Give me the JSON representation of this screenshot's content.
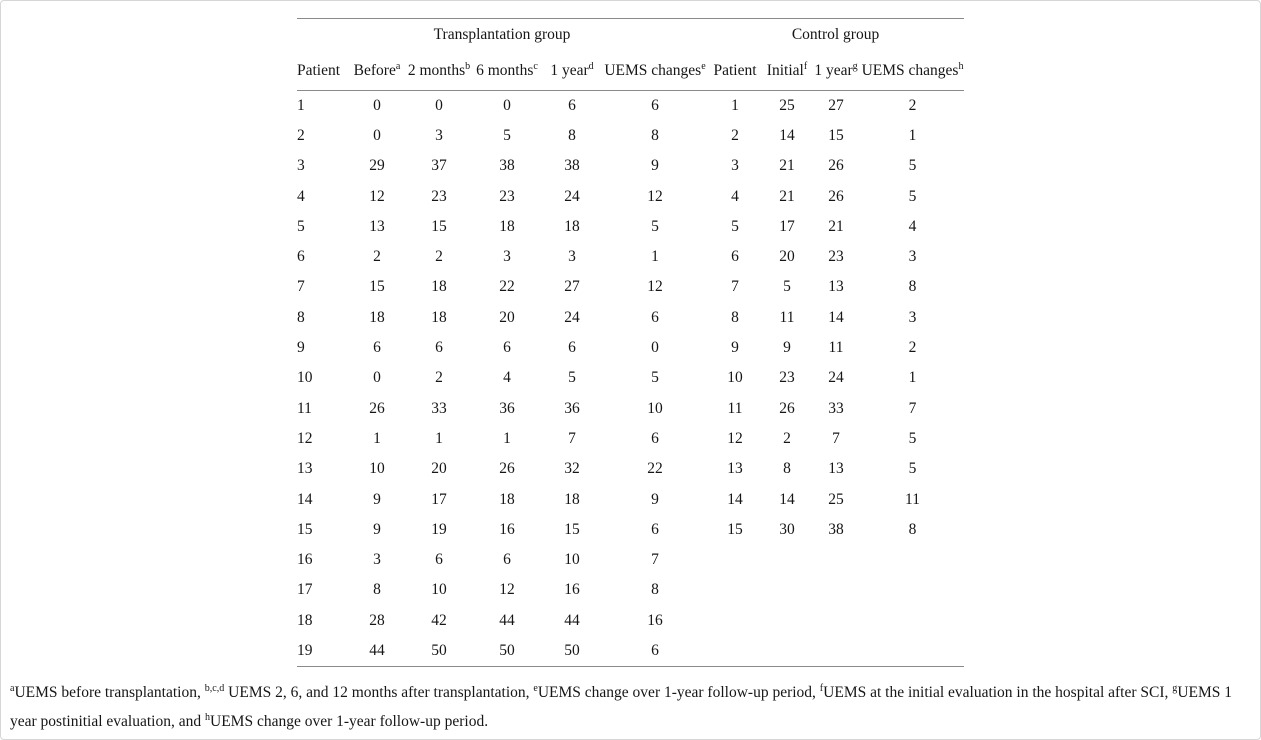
{
  "page": {
    "background_color": "#ffffff",
    "border_color": "#d6d6d6",
    "rule_color": "#8a8a8a",
    "text_color": "#161616"
  },
  "table": {
    "group_headers": [
      {
        "label": "Transplantation group",
        "colspan": 6
      },
      {
        "label": "Control group",
        "colspan": 4
      }
    ],
    "columns": [
      {
        "label": "Patient",
        "sup": ""
      },
      {
        "label": "Before",
        "sup": "a"
      },
      {
        "label": "2 months",
        "sup": "b"
      },
      {
        "label": "6 months",
        "sup": "c"
      },
      {
        "label": "1 year",
        "sup": "d"
      },
      {
        "label": "UEMS changes",
        "sup": "e"
      },
      {
        "label": "Patient",
        "sup": ""
      },
      {
        "label": "Initial",
        "sup": "f"
      },
      {
        "label": "1 year",
        "sup": "g"
      },
      {
        "label": "UEMS changes",
        "sup": "h"
      }
    ],
    "rows": [
      [
        "1",
        "0",
        "0",
        "0",
        "6",
        "6",
        "1",
        "25",
        "27",
        "2"
      ],
      [
        "2",
        "0",
        "3",
        "5",
        "8",
        "8",
        "2",
        "14",
        "15",
        "1"
      ],
      [
        "3",
        "29",
        "37",
        "38",
        "38",
        "9",
        "3",
        "21",
        "26",
        "5"
      ],
      [
        "4",
        "12",
        "23",
        "23",
        "24",
        "12",
        "4",
        "21",
        "26",
        "5"
      ],
      [
        "5",
        "13",
        "15",
        "18",
        "18",
        "5",
        "5",
        "17",
        "21",
        "4"
      ],
      [
        "6",
        "2",
        "2",
        "3",
        "3",
        "1",
        "6",
        "20",
        "23",
        "3"
      ],
      [
        "7",
        "15",
        "18",
        "22",
        "27",
        "12",
        "7",
        "5",
        "13",
        "8"
      ],
      [
        "8",
        "18",
        "18",
        "20",
        "24",
        "6",
        "8",
        "11",
        "14",
        "3"
      ],
      [
        "9",
        "6",
        "6",
        "6",
        "6",
        "0",
        "9",
        "9",
        "11",
        "2"
      ],
      [
        "10",
        "0",
        "2",
        "4",
        "5",
        "5",
        "10",
        "23",
        "24",
        "1"
      ],
      [
        "11",
        "26",
        "33",
        "36",
        "36",
        "10",
        "11",
        "26",
        "33",
        "7"
      ],
      [
        "12",
        "1",
        "1",
        "1",
        "7",
        "6",
        "12",
        "2",
        "7",
        "5"
      ],
      [
        "13",
        "10",
        "20",
        "26",
        "32",
        "22",
        "13",
        "8",
        "13",
        "5"
      ],
      [
        "14",
        "9",
        "17",
        "18",
        "18",
        "9",
        "14",
        "14",
        "25",
        "11"
      ],
      [
        "15",
        "9",
        "19",
        "16",
        "15",
        "6",
        "15",
        "30",
        "38",
        "8"
      ],
      [
        "16",
        "3",
        "6",
        "6",
        "10",
        "7",
        "",
        "",
        "",
        ""
      ],
      [
        "17",
        "8",
        "10",
        "12",
        "16",
        "8",
        "",
        "",
        "",
        ""
      ],
      [
        "18",
        "28",
        "42",
        "44",
        "44",
        "16",
        "",
        "",
        "",
        ""
      ],
      [
        "19",
        "44",
        "50",
        "50",
        "50",
        "6",
        "",
        "",
        "",
        ""
      ]
    ]
  },
  "footnote": {
    "segments": [
      {
        "sup": "a"
      },
      {
        "text": "UEMS before transplantation, "
      },
      {
        "sup": "b,c,d"
      },
      {
        "text": " UEMS 2, 6, and 12 months after transplantation, "
      },
      {
        "sup": "e"
      },
      {
        "text": "UEMS change over 1-year follow-up period, "
      },
      {
        "sup": "f"
      },
      {
        "text": "UEMS at the initial evaluation in the hospital after SCI, "
      },
      {
        "sup": "g"
      },
      {
        "text": "UEMS 1 year postinitial evaluation, and "
      },
      {
        "sup": "h"
      },
      {
        "text": "UEMS change over 1-year follow-up period."
      }
    ]
  }
}
